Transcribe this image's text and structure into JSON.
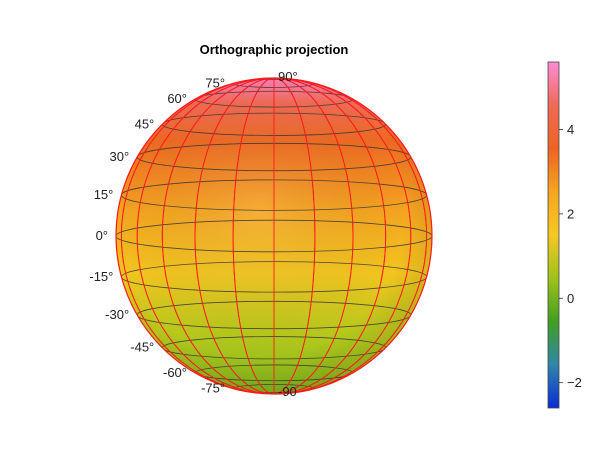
{
  "chart_data": {
    "type": "heatmap",
    "projection": "orthographic",
    "title": "Orthographic projection",
    "latitude_labels": [
      "90°",
      "75°",
      "60°",
      "45°",
      "30°",
      "15°",
      "0°",
      "-15°",
      "-30°",
      "-45°",
      "-60°",
      "-75°",
      "-90"
    ],
    "latitude_values": [
      90,
      75,
      60,
      45,
      30,
      15,
      0,
      -15,
      -30,
      -45,
      -60,
      -75,
      -90
    ],
    "meridian_count": 12,
    "surface_value_range": [
      -0.5,
      5.5
    ],
    "colorbar": {
      "range": [
        -2.6,
        5.6
      ],
      "ticks": [
        -2,
        0,
        2,
        4
      ],
      "tick_labels": [
        "−2",
        "0",
        "2",
        "4"
      ],
      "colormap": [
        "#0a2ad8",
        "#2f86a8",
        "#41a020",
        "#9fc21a",
        "#f5c823",
        "#f6a51f",
        "#ee6323",
        "#f06a55",
        "#ff8ad6"
      ]
    },
    "grid": true,
    "grid_colors": {
      "parallels": "#333333",
      "meridians": "#ff1a1a",
      "rim": "#ff1a1a"
    }
  }
}
